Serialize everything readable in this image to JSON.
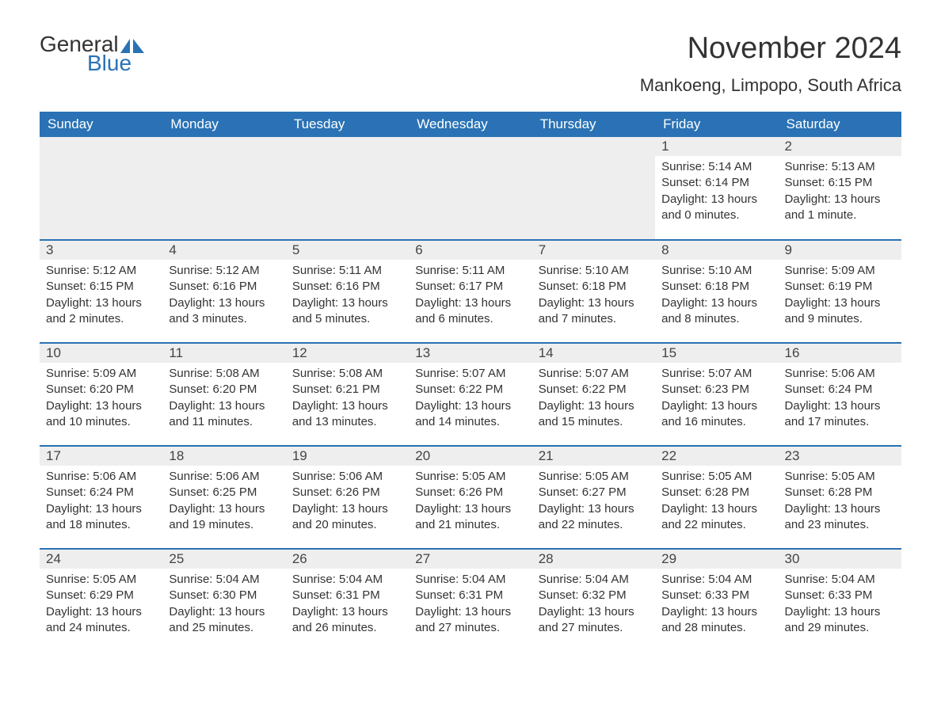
{
  "logo": {
    "text_general": "General",
    "text_blue": "Blue"
  },
  "title": "November 2024",
  "location": "Mankoeng, Limpopo, South Africa",
  "colors": {
    "header_bg": "#2a72b5",
    "header_text": "#ffffff",
    "day_number_bg": "#eeeeee",
    "border": "#2a72b5",
    "text": "#333333",
    "background": "#ffffff"
  },
  "weekdays": [
    "Sunday",
    "Monday",
    "Tuesday",
    "Wednesday",
    "Thursday",
    "Friday",
    "Saturday"
  ],
  "weeks": [
    [
      null,
      null,
      null,
      null,
      null,
      {
        "day": "1",
        "sunrise": "Sunrise: 5:14 AM",
        "sunset": "Sunset: 6:14 PM",
        "daylight": "Daylight: 13 hours and 0 minutes."
      },
      {
        "day": "2",
        "sunrise": "Sunrise: 5:13 AM",
        "sunset": "Sunset: 6:15 PM",
        "daylight": "Daylight: 13 hours and 1 minute."
      }
    ],
    [
      {
        "day": "3",
        "sunrise": "Sunrise: 5:12 AM",
        "sunset": "Sunset: 6:15 PM",
        "daylight": "Daylight: 13 hours and 2 minutes."
      },
      {
        "day": "4",
        "sunrise": "Sunrise: 5:12 AM",
        "sunset": "Sunset: 6:16 PM",
        "daylight": "Daylight: 13 hours and 3 minutes."
      },
      {
        "day": "5",
        "sunrise": "Sunrise: 5:11 AM",
        "sunset": "Sunset: 6:16 PM",
        "daylight": "Daylight: 13 hours and 5 minutes."
      },
      {
        "day": "6",
        "sunrise": "Sunrise: 5:11 AM",
        "sunset": "Sunset: 6:17 PM",
        "daylight": "Daylight: 13 hours and 6 minutes."
      },
      {
        "day": "7",
        "sunrise": "Sunrise: 5:10 AM",
        "sunset": "Sunset: 6:18 PM",
        "daylight": "Daylight: 13 hours and 7 minutes."
      },
      {
        "day": "8",
        "sunrise": "Sunrise: 5:10 AM",
        "sunset": "Sunset: 6:18 PM",
        "daylight": "Daylight: 13 hours and 8 minutes."
      },
      {
        "day": "9",
        "sunrise": "Sunrise: 5:09 AM",
        "sunset": "Sunset: 6:19 PM",
        "daylight": "Daylight: 13 hours and 9 minutes."
      }
    ],
    [
      {
        "day": "10",
        "sunrise": "Sunrise: 5:09 AM",
        "sunset": "Sunset: 6:20 PM",
        "daylight": "Daylight: 13 hours and 10 minutes."
      },
      {
        "day": "11",
        "sunrise": "Sunrise: 5:08 AM",
        "sunset": "Sunset: 6:20 PM",
        "daylight": "Daylight: 13 hours and 11 minutes."
      },
      {
        "day": "12",
        "sunrise": "Sunrise: 5:08 AM",
        "sunset": "Sunset: 6:21 PM",
        "daylight": "Daylight: 13 hours and 13 minutes."
      },
      {
        "day": "13",
        "sunrise": "Sunrise: 5:07 AM",
        "sunset": "Sunset: 6:22 PM",
        "daylight": "Daylight: 13 hours and 14 minutes."
      },
      {
        "day": "14",
        "sunrise": "Sunrise: 5:07 AM",
        "sunset": "Sunset: 6:22 PM",
        "daylight": "Daylight: 13 hours and 15 minutes."
      },
      {
        "day": "15",
        "sunrise": "Sunrise: 5:07 AM",
        "sunset": "Sunset: 6:23 PM",
        "daylight": "Daylight: 13 hours and 16 minutes."
      },
      {
        "day": "16",
        "sunrise": "Sunrise: 5:06 AM",
        "sunset": "Sunset: 6:24 PM",
        "daylight": "Daylight: 13 hours and 17 minutes."
      }
    ],
    [
      {
        "day": "17",
        "sunrise": "Sunrise: 5:06 AM",
        "sunset": "Sunset: 6:24 PM",
        "daylight": "Daylight: 13 hours and 18 minutes."
      },
      {
        "day": "18",
        "sunrise": "Sunrise: 5:06 AM",
        "sunset": "Sunset: 6:25 PM",
        "daylight": "Daylight: 13 hours and 19 minutes."
      },
      {
        "day": "19",
        "sunrise": "Sunrise: 5:06 AM",
        "sunset": "Sunset: 6:26 PM",
        "daylight": "Daylight: 13 hours and 20 minutes."
      },
      {
        "day": "20",
        "sunrise": "Sunrise: 5:05 AM",
        "sunset": "Sunset: 6:26 PM",
        "daylight": "Daylight: 13 hours and 21 minutes."
      },
      {
        "day": "21",
        "sunrise": "Sunrise: 5:05 AM",
        "sunset": "Sunset: 6:27 PM",
        "daylight": "Daylight: 13 hours and 22 minutes."
      },
      {
        "day": "22",
        "sunrise": "Sunrise: 5:05 AM",
        "sunset": "Sunset: 6:28 PM",
        "daylight": "Daylight: 13 hours and 22 minutes."
      },
      {
        "day": "23",
        "sunrise": "Sunrise: 5:05 AM",
        "sunset": "Sunset: 6:28 PM",
        "daylight": "Daylight: 13 hours and 23 minutes."
      }
    ],
    [
      {
        "day": "24",
        "sunrise": "Sunrise: 5:05 AM",
        "sunset": "Sunset: 6:29 PM",
        "daylight": "Daylight: 13 hours and 24 minutes."
      },
      {
        "day": "25",
        "sunrise": "Sunrise: 5:04 AM",
        "sunset": "Sunset: 6:30 PM",
        "daylight": "Daylight: 13 hours and 25 minutes."
      },
      {
        "day": "26",
        "sunrise": "Sunrise: 5:04 AM",
        "sunset": "Sunset: 6:31 PM",
        "daylight": "Daylight: 13 hours and 26 minutes."
      },
      {
        "day": "27",
        "sunrise": "Sunrise: 5:04 AM",
        "sunset": "Sunset: 6:31 PM",
        "daylight": "Daylight: 13 hours and 27 minutes."
      },
      {
        "day": "28",
        "sunrise": "Sunrise: 5:04 AM",
        "sunset": "Sunset: 6:32 PM",
        "daylight": "Daylight: 13 hours and 27 minutes."
      },
      {
        "day": "29",
        "sunrise": "Sunrise: 5:04 AM",
        "sunset": "Sunset: 6:33 PM",
        "daylight": "Daylight: 13 hours and 28 minutes."
      },
      {
        "day": "30",
        "sunrise": "Sunrise: 5:04 AM",
        "sunset": "Sunset: 6:33 PM",
        "daylight": "Daylight: 13 hours and 29 minutes."
      }
    ]
  ]
}
